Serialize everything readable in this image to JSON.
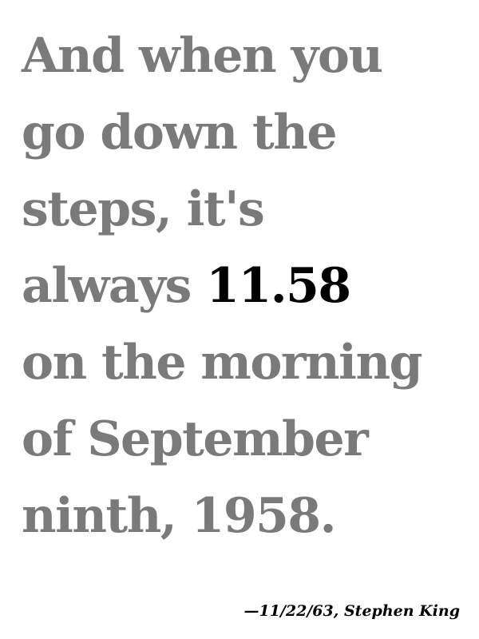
{
  "quote": {
    "lines": [
      "And when you",
      "go down the",
      "steps, it's",
      "always ",
      "on the morning",
      "of September",
      "ninth, 1958."
    ],
    "time": "11.58",
    "text_color": "#7a7a7a",
    "time_color": "#000000"
  },
  "attribution": {
    "dash": "—",
    "source": "11/22/63, ",
    "author": "Stephen King"
  }
}
